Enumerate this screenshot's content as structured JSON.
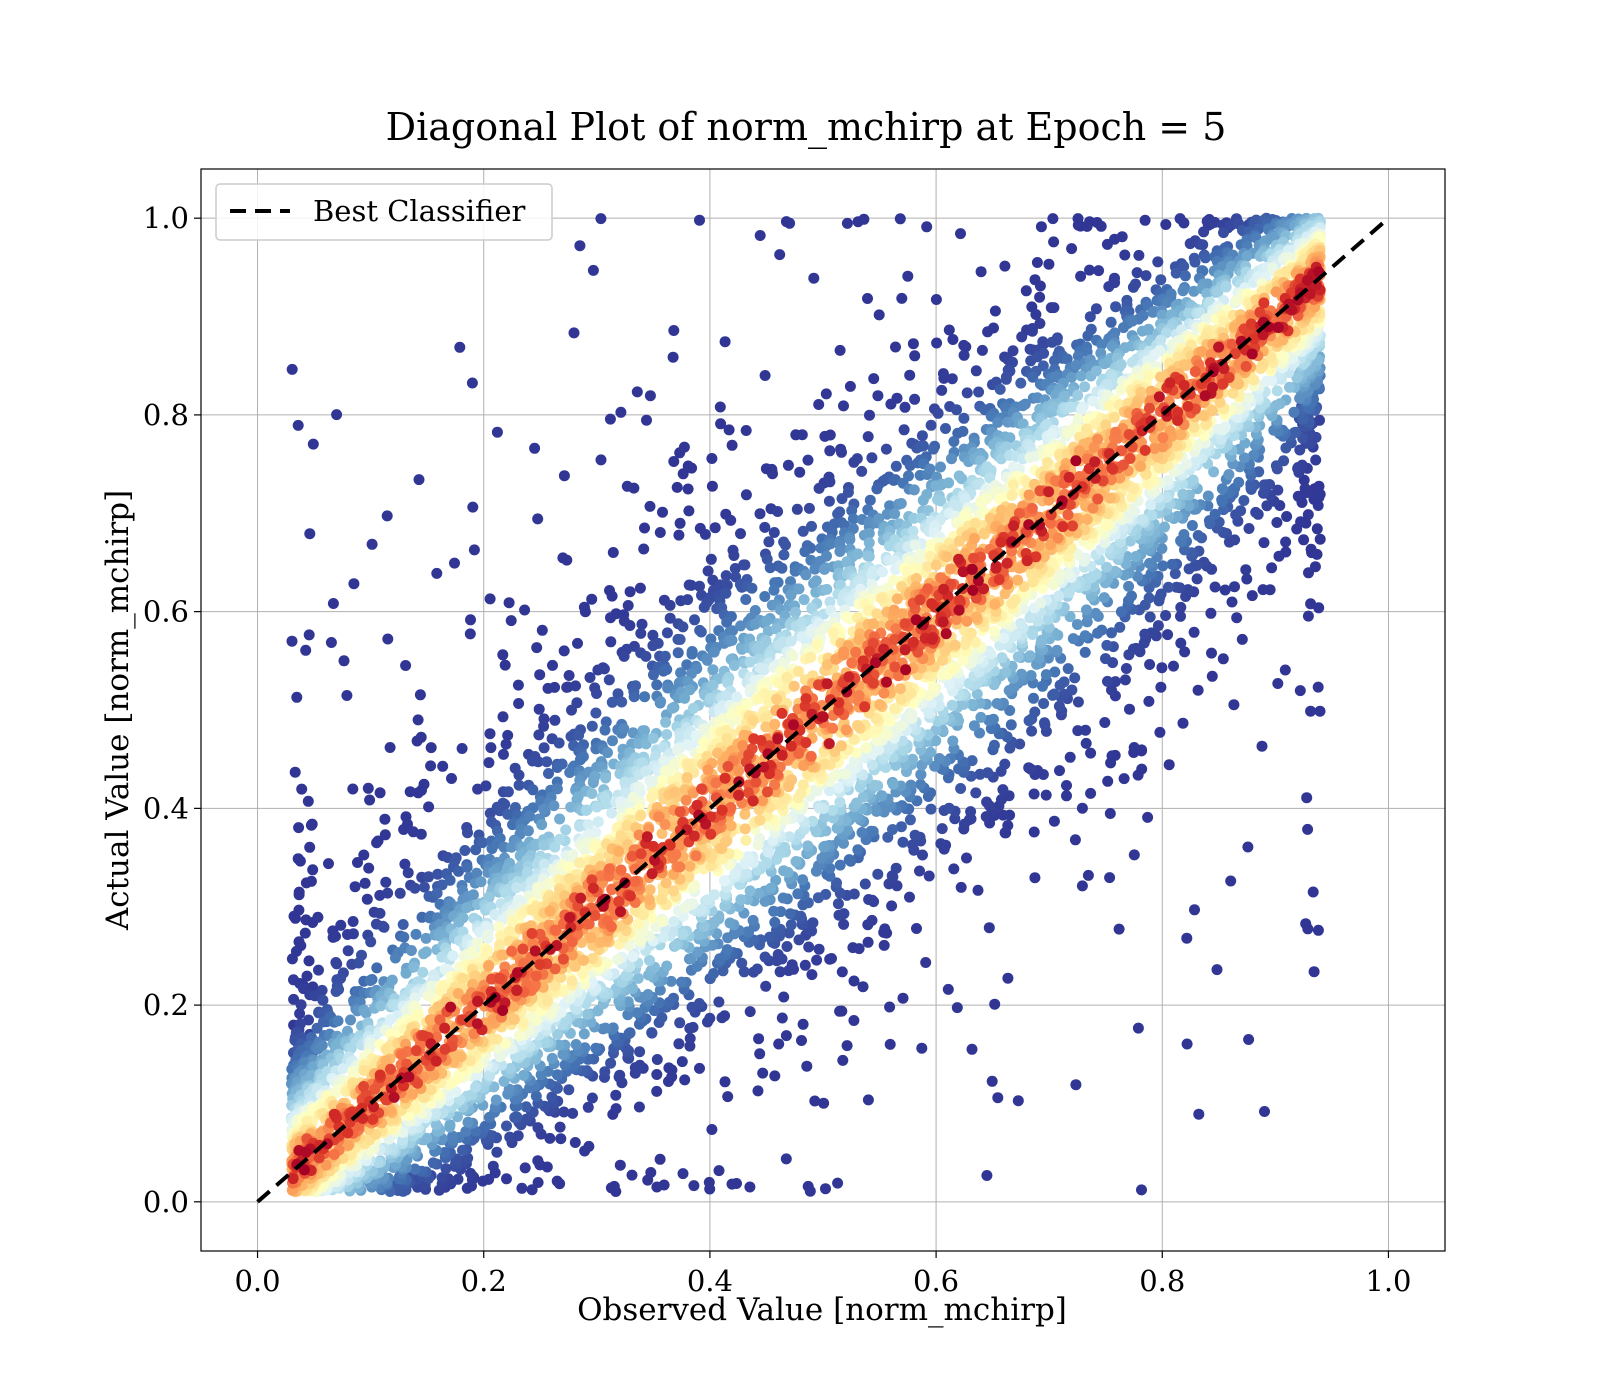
{
  "chart_data": {
    "type": "scatter",
    "title": "Diagonal Plot of norm_mchirp at Epoch = 5",
    "xlabel": "Observed Value [norm_mchirp]",
    "ylabel": "Actual Value [norm_mchirp]",
    "xlim": [
      -0.05,
      1.05
    ],
    "ylim": [
      -0.05,
      1.05
    ],
    "xticks": [
      "0.0",
      "0.2",
      "0.4",
      "0.6",
      "0.8",
      "1.0"
    ],
    "yticks": [
      "0.0",
      "0.2",
      "0.4",
      "0.6",
      "0.8",
      "1.0"
    ],
    "xtick_values": [
      0.0,
      0.2,
      0.4,
      0.6,
      0.8,
      1.0
    ],
    "ytick_values": [
      0.0,
      0.2,
      0.4,
      0.6,
      0.8,
      1.0
    ],
    "grid": true,
    "colormap": "RdYlBu_r (point density)",
    "colors": {
      "density_low": "#313695",
      "density_mid": "#ffffbf",
      "density_high": "#a50026",
      "reference_line": "#000000",
      "grid": "#b0b0b0"
    },
    "reference_line": {
      "name": "Best Classifier",
      "style": "dashed",
      "x": [
        0.0,
        1.0
      ],
      "y": [
        0.0,
        1.0
      ]
    },
    "scatter_description": {
      "approx_points": 9000,
      "x_range": [
        0.03,
        0.94
      ],
      "y_range": [
        0.01,
        1.0
      ],
      "trend": "points cluster along y = x, densest near the diagonal, spread wider in the middle range"
    },
    "legend": {
      "placement": "top-left",
      "entries": [
        "Best Classifier"
      ]
    }
  }
}
